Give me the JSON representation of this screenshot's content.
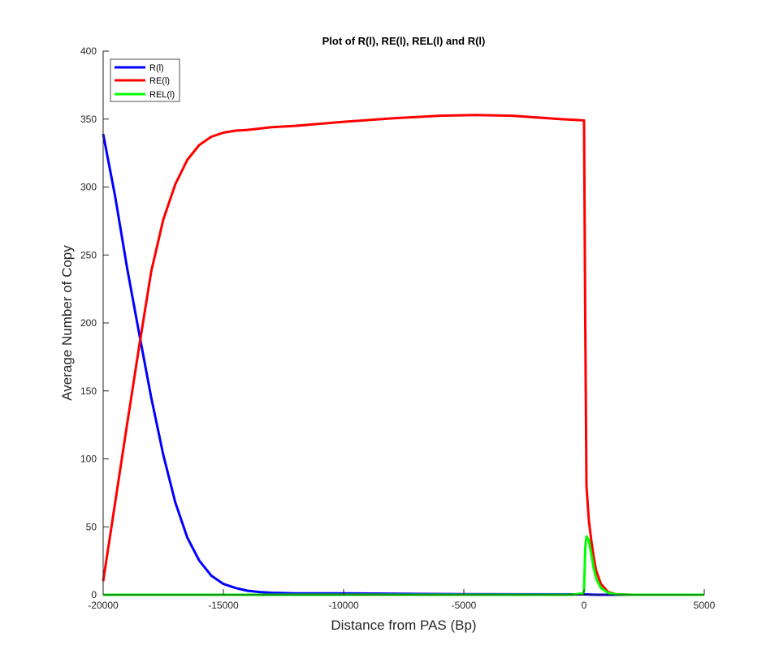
{
  "chart_data": {
    "type": "line",
    "title": "Plot of R(l), RE(l), REL(l) and R(l)",
    "xlabel": "Distance from PAS (Bp)",
    "ylabel": "Average Number of Copy",
    "xlim": [
      -20000,
      5000
    ],
    "ylim": [
      0,
      400
    ],
    "xticks": [
      -20000,
      -15000,
      -10000,
      -5000,
      0,
      5000
    ],
    "yticks": [
      0,
      50,
      100,
      150,
      200,
      250,
      300,
      350,
      400
    ],
    "grid": false,
    "legend_position": "top-left",
    "series": [
      {
        "name": "R(l)",
        "color": "#0000ff",
        "x": [
          -20000,
          -19500,
          -19000,
          -18500,
          -18000,
          -17500,
          -17000,
          -16500,
          -16000,
          -15500,
          -15000,
          -14500,
          -14000,
          -13500,
          -13000,
          -12000,
          -10000,
          -5000,
          0,
          500,
          1000,
          5000
        ],
        "y": [
          339,
          293,
          240,
          192,
          145,
          103,
          68,
          42,
          25,
          14,
          8,
          5,
          3,
          2,
          1.5,
          1,
          1,
          0.5,
          0.3,
          0,
          0,
          0
        ]
      },
      {
        "name": "RE(l)",
        "color": "#ff0000",
        "x": [
          -20000,
          -19500,
          -19000,
          -18500,
          -18000,
          -17500,
          -17000,
          -16500,
          -16000,
          -15500,
          -15000,
          -14500,
          -14000,
          -13000,
          -12000,
          -10000,
          -8000,
          -6000,
          -4500,
          -3000,
          -1000,
          0,
          50,
          100,
          200,
          300,
          400,
          500,
          700,
          1000,
          1300,
          2000,
          5000
        ],
        "y": [
          10,
          68,
          126,
          183,
          238,
          276,
          302,
          320,
          331,
          337,
          340,
          341.5,
          342,
          344,
          345,
          348,
          350.5,
          352.5,
          353,
          352.5,
          350,
          349,
          200,
          80,
          55,
          40,
          28,
          18,
          8,
          2,
          0.5,
          0,
          0
        ]
      },
      {
        "name": "REL(l)",
        "color": "#00ff00",
        "x": [
          -20000,
          -10000,
          -500,
          -50,
          0,
          50,
          100,
          200,
          300,
          400,
          500,
          700,
          1000,
          1300,
          2000,
          5000
        ],
        "y": [
          0,
          0,
          0,
          1,
          3,
          35,
          43,
          40,
          30,
          20,
          12,
          5,
          1.5,
          0.3,
          0,
          0
        ]
      }
    ]
  }
}
